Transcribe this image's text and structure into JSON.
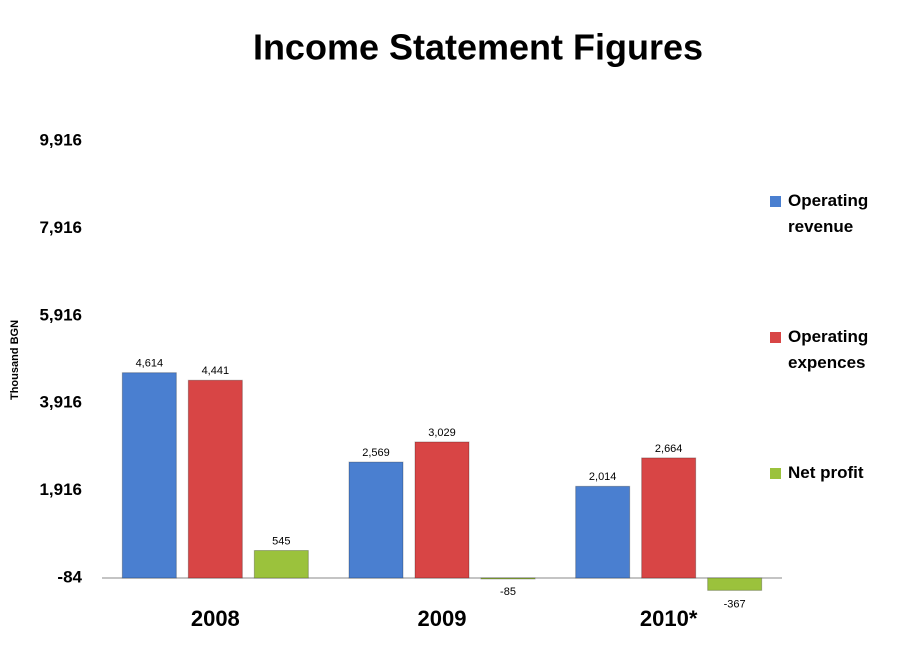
{
  "chart_data": {
    "type": "bar",
    "title": "Income Statement Figures",
    "y_label": "Thousand BGN",
    "categories": [
      "2008",
      "2009",
      "2010*"
    ],
    "series": [
      {
        "name": "Operating revenue",
        "color": "#4a7fd0",
        "values": [
          4614,
          2569,
          2014
        ],
        "value_labels": [
          "4,614",
          "2,569",
          "2,014"
        ]
      },
      {
        "name": "Operating expences",
        "color": "#d84545",
        "values": [
          4441,
          3029,
          2664
        ],
        "value_labels": [
          "4,441",
          "3,029",
          "2,664"
        ]
      },
      {
        "name": "Net profit",
        "color": "#9bc23c",
        "values": [
          545,
          -85,
          -367
        ],
        "value_labels": [
          "545",
          "-85",
          "-367"
        ]
      }
    ],
    "ylim": [
      -84,
      9916
    ],
    "yticks": [
      -84,
      {
        "value": 1916,
        "label": "1,916"
      },
      {
        "value": 3916,
        "label": "3,916"
      },
      {
        "value": 5916,
        "label": "5,916"
      },
      {
        "value": 7916,
        "label": "7,916"
      },
      {
        "value": 9916,
        "label": "9,916"
      }
    ],
    "legend": "right"
  }
}
